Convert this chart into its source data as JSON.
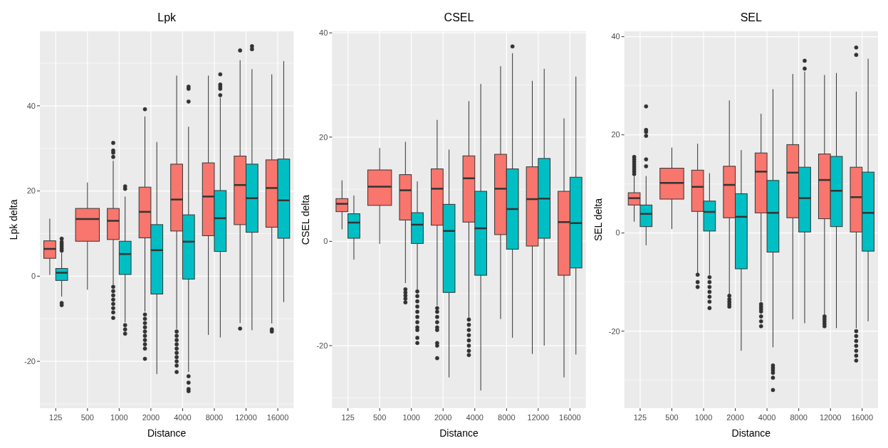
{
  "chart_data": [
    {
      "type": "box",
      "title": "Lpk",
      "xlabel": "Distance",
      "ylabel": "Lpk delta",
      "categories": [
        "125",
        "500",
        "1000",
        "2000",
        "4000",
        "8000",
        "12000",
        "16000"
      ],
      "ylim": [
        -31,
        57.5
      ],
      "yticks": [
        -20,
        0,
        20,
        40
      ],
      "grid": true,
      "series": [
        {
          "color": "#f8766d",
          "boxes": [
            {
              "low": 0.3,
              "q1": 4.2,
              "median": 6.4,
              "q3": 8.3,
              "high": 13.5
            },
            {
              "low": -3.2,
              "q1": 8.2,
              "median": 13.4,
              "q3": 15.9,
              "high": 22
            },
            {
              "low": -2,
              "q1": 8.6,
              "median": 13,
              "q3": 15.9,
              "high": 27.1,
              "outliers": [
                28,
                29,
                29.5,
                31.3,
                -2.5,
                -3.5,
                -4.5,
                -5.5,
                -6.5,
                -7.5,
                -8.5,
                -9.8
              ]
            },
            {
              "low": -8.3,
              "q1": 9,
              "median": 15.1,
              "q3": 20.9,
              "high": 37.5,
              "outliers": [
                39.2,
                -9,
                -10,
                -11,
                -12,
                -13,
                -14,
                -15,
                -16,
                -17,
                -19.4
              ]
            },
            {
              "low": -12.4,
              "q1": 10.6,
              "median": 18,
              "q3": 26.3,
              "high": 47.1,
              "outliers": [
                -13,
                -14,
                -15,
                -16,
                -17,
                -18,
                -19,
                -20,
                -21,
                -22.5
              ]
            },
            {
              "low": -13.8,
              "q1": 9.5,
              "median": 18.7,
              "q3": 26.6,
              "high": 47.1
            },
            {
              "low": -11,
              "q1": 12.1,
              "median": 21.4,
              "q3": 28.2,
              "high": 50.7,
              "outliers": [
                53,
                -12.3
              ]
            },
            {
              "low": -11.1,
              "q1": 11.5,
              "median": 20.7,
              "q3": 27.3,
              "high": 47.4,
              "outliers": [
                -12.5,
                -13
              ]
            }
          ]
        },
        {
          "color": "#00bfc4",
          "boxes": [
            {
              "low": -4.8,
              "q1": -1,
              "median": 0.8,
              "q3": 1.8,
              "high": 5.5,
              "outliers": [
                6,
                6.5,
                7,
                7.5,
                8,
                8.8,
                -6.3,
                -6.8
              ]
            },
            null,
            {
              "low": -10.8,
              "q1": 0.4,
              "median": 5.2,
              "q3": 8.2,
              "high": 18.7,
              "outliers": [
                20.5,
                21.1,
                -11.5,
                -12.5,
                -13.5
              ]
            },
            {
              "low": -23,
              "q1": -4.2,
              "median": 6.1,
              "q3": 12.1,
              "high": 31.5
            },
            {
              "low": -22.5,
              "q1": -0.7,
              "median": 8.1,
              "q3": 14.4,
              "high": 35.1,
              "outliers": [
                41,
                44,
                44.5,
                -23.5,
                -25,
                -26.5,
                -27
              ]
            },
            {
              "low": -14.4,
              "q1": 5.8,
              "median": 13.6,
              "q3": 20.1,
              "high": 41.9,
              "outliers": [
                42.5,
                44,
                44.5,
                45,
                47.4
              ]
            },
            {
              "low": -12.7,
              "q1": 10.3,
              "median": 18.3,
              "q3": 26.3,
              "high": 48.6,
              "outliers": [
                53.3,
                54
              ]
            },
            {
              "low": -6.1,
              "q1": 8.9,
              "median": 17.8,
              "q3": 27.5,
              "high": 50.5
            }
          ]
        }
      ]
    },
    {
      "type": "box",
      "title": "CSEL",
      "xlabel": "Distance",
      "ylabel": "CSEL delta",
      "categories": [
        "125",
        "500",
        "1000",
        "2000",
        "4000",
        "8000",
        "12000",
        "16000"
      ],
      "ylim": [
        -32,
        40.3
      ],
      "yticks": [
        -20,
        0,
        20,
        40
      ],
      "grid": true,
      "series": [
        {
          "color": "#f8766d",
          "boxes": [
            {
              "low": 2.3,
              "q1": 5.7,
              "median": 7.2,
              "q3": 8.2,
              "high": 11.7
            },
            {
              "low": -0.5,
              "q1": 6.9,
              "median": 10.5,
              "q3": 13.7,
              "high": 17.9
            },
            {
              "low": -8,
              "q1": 4.1,
              "median": 9.8,
              "q3": 12.8,
              "high": 19.1,
              "outliers": [
                -9.2,
                -9.8,
                -10.4,
                -11,
                -11.7
              ]
            },
            {
              "low": -12.3,
              "q1": 3.1,
              "median": 10.1,
              "q3": 13.9,
              "high": 23.3,
              "outliers": [
                -12.8,
                -13.5,
                -14.5,
                -15.5,
                -16.5,
                -17,
                -19.5,
                -20,
                -22.4
              ]
            },
            {
              "low": -14.7,
              "q1": 3.7,
              "median": 12.1,
              "q3": 16.4,
              "high": 26.9,
              "outliers": [
                -15,
                -16,
                -17,
                -18,
                -19,
                -20,
                -21,
                -21.8
              ]
            },
            {
              "low": -14.9,
              "q1": 1.3,
              "median": 10.1,
              "q3": 16.7,
              "high": 33.6
            },
            {
              "low": -21.6,
              "q1": -0.9,
              "median": 8.1,
              "q3": 14.3,
              "high": 30.8
            },
            {
              "low": -26.1,
              "q1": -6.5,
              "median": 3.7,
              "q3": 9.6,
              "high": 23.6
            }
          ]
        },
        {
          "color": "#00bfc4",
          "boxes": [
            {
              "low": -3.5,
              "q1": 0.6,
              "median": 3.6,
              "q3": 5.3,
              "high": 8.8
            },
            null,
            {
              "low": -9.3,
              "q1": -0.4,
              "median": 3.2,
              "q3": 5.5,
              "high": 11.5,
              "outliers": [
                -9.6,
                -10.5,
                -11.5,
                -12.5,
                -13.5,
                -14.5,
                -15.5,
                -16.5,
                -17,
                -18.5,
                -19.5
              ]
            },
            {
              "low": -26.1,
              "q1": -9.8,
              "median": 2,
              "q3": 7.1,
              "high": 17.6
            },
            {
              "low": -28.6,
              "q1": -6.5,
              "median": 2.5,
              "q3": 9.6,
              "high": 30.2
            },
            {
              "low": -18.5,
              "q1": -1.5,
              "median": 6.2,
              "q3": 13.9,
              "high": 36.1,
              "outliers": [
                37.4
              ]
            },
            {
              "low": -20,
              "q1": 0.6,
              "median": 8.2,
              "q3": 15.9,
              "high": 33.1
            },
            {
              "low": -21.7,
              "q1": -5.1,
              "median": 3.5,
              "q3": 12.3,
              "high": 31.6
            }
          ]
        }
      ]
    },
    {
      "type": "box",
      "title": "SEL",
      "xlabel": "Distance",
      "ylabel": "SEL delta",
      "categories": [
        "125",
        "500",
        "1000",
        "2000",
        "4000",
        "8000",
        "12000",
        "16000"
      ],
      "ylim": [
        -35.7,
        41.1
      ],
      "yticks": [
        -20,
        0,
        20,
        40
      ],
      "grid": true,
      "series": [
        {
          "color": "#f8766d",
          "boxes": [
            {
              "low": 2.3,
              "q1": 5.7,
              "median": 7.1,
              "q3": 8.2,
              "high": 11.5,
              "outliers": [
                12,
                12.5,
                13,
                13.5,
                14,
                14.5,
                15,
                15.5
              ]
            },
            {
              "low": 0.8,
              "q1": 6.9,
              "median": 10.2,
              "q3": 13.2,
              "high": 17.4
            },
            {
              "low": -8.2,
              "q1": 4.4,
              "median": 9.4,
              "q3": 12.8,
              "high": 18.2,
              "outliers": [
                -8.5,
                -10,
                -11
              ]
            },
            {
              "low": -12.6,
              "q1": 3.1,
              "median": 9.8,
              "q3": 13.6,
              "high": 27,
              "outliers": [
                -12.8,
                -13.5,
                -14,
                -14.5,
                -15
              ]
            },
            {
              "low": -14,
              "q1": 4.1,
              "median": 12.5,
              "q3": 16.3,
              "high": 24.3,
              "outliers": [
                -14.5,
                -15,
                -15.5,
                -16,
                -17,
                -18,
                -19
              ]
            },
            {
              "low": -17.6,
              "q1": 3.1,
              "median": 12.3,
              "q3": 18,
              "high": 32.4
            },
            {
              "low": -16.6,
              "q1": 2.9,
              "median": 10.8,
              "q3": 16.1,
              "high": 32.2,
              "outliers": [
                -17,
                -17.5,
                -18,
                -18.5,
                -19
              ]
            },
            {
              "low": -19.4,
              "q1": 0.2,
              "median": 7.3,
              "q3": 13.4,
              "high": 28.8,
              "outliers": [
                36.3,
                37.8,
                -20,
                -21,
                -22,
                -23,
                -24,
                -25,
                -26
              ]
            }
          ]
        },
        {
          "color": "#00bfc4",
          "boxes": [
            {
              "low": -2.5,
              "q1": 1.3,
              "median": 3.9,
              "q3": 5.7,
              "high": 11.6,
              "outliers": [
                13.6,
                15,
                19.8,
                20.6,
                21,
                25.8
              ]
            },
            null,
            {
              "low": -8.5,
              "q1": 0.4,
              "median": 4.3,
              "q3": 6.5,
              "high": 12.2,
              "outliers": [
                -9,
                -10,
                -11,
                -12,
                -13,
                -14,
                -15.3
              ]
            },
            {
              "low": -24,
              "q1": -7.3,
              "median": 3.3,
              "q3": 8,
              "high": 16.9
            },
            {
              "low": -23.3,
              "q1": -3.9,
              "median": 4.1,
              "q3": 10.7,
              "high": 29.3,
              "outliers": [
                -27,
                -27.5,
                -28,
                -28.5,
                -29.5,
                -32
              ]
            },
            {
              "low": -18.4,
              "q1": 0.2,
              "median": 7.1,
              "q3": 13.4,
              "high": 32.9,
              "outliers": [
                33.5,
                35.1
              ]
            },
            {
              "low": -19.4,
              "q1": 1.3,
              "median": 8.6,
              "q3": 15.6,
              "high": 32.6
            },
            {
              "low": -18,
              "q1": -3.7,
              "median": 4.1,
              "q3": 12.4,
              "high": 35.5
            }
          ]
        }
      ]
    }
  ]
}
